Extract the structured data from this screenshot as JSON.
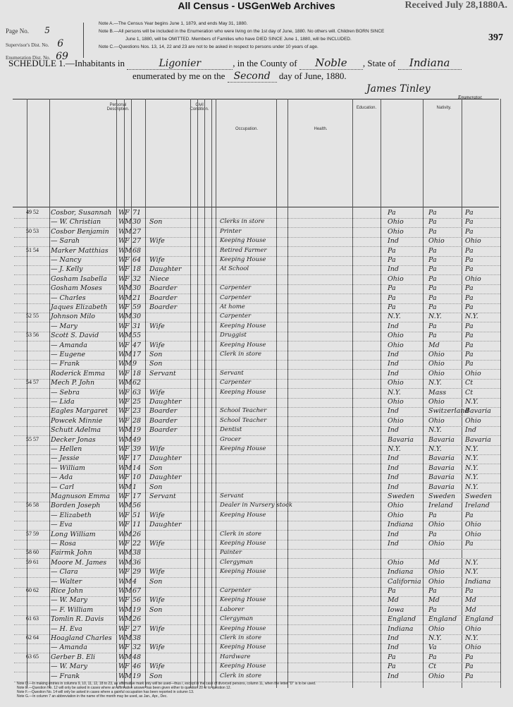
{
  "banner": "All Census - USGenWeb Archives",
  "received": "Received July 28,1880",
  "page_corner_letter": "A.",
  "page_number_stamp": "397",
  "meta": {
    "page_label": "Page No.",
    "page_value": "5",
    "supervisor_label": "Supervisor's Dist. No.",
    "supervisor_value": "6",
    "enumeration_label": "Enumeration Dist. No.",
    "enumeration_value": "69"
  },
  "notes": [
    "Note A.—The Census Year begins June 1, 1879, and ends May 31, 1880.",
    "Note B.—All persons will be included in the Enumeration who were living on the 1st day of June, 1880. No others will. Children BORN SINCE",
    "June 1, 1880, will be OMITTED. Members of Families who have DIED SINCE June 1, 1880, will be INCLUDED.",
    "Note C.—Questions Nos. 13, 14, 22 and 23 are not to be asked in respect to persons under 10 years of age."
  ],
  "schedule": {
    "prefix": "SCHEDULE 1.—Inhabitants in",
    "place": "Ligonier",
    "county_label": ", in the County of",
    "county": "Noble",
    "state_label": ", State of",
    "state": "Indiana",
    "enum_prefix": "enumerated by me on the",
    "day": "Second",
    "enum_suffix": "day of June, 1880.",
    "enumerator_signature": "James Tinley",
    "enumerator_label": "Enumerator."
  },
  "column_headers": {
    "personal": "Personal Description.",
    "civil": "Civil Condition.",
    "occupation": "Occupation.",
    "health": "Health.",
    "education": "Education.",
    "nativity": "Nativity."
  },
  "rows": [
    {
      "dw": "49 52",
      "name": "Cosbor, Susannah",
      "c": "W",
      "s": "F",
      "a": "71",
      "rel": "",
      "occ": "",
      "bp": "Pa",
      "fa": "Pa",
      "mo": "Pa"
    },
    {
      "dw": "",
      "name": "— W. Christian",
      "c": "W",
      "s": "M",
      "a": "30",
      "rel": "Son",
      "occ": "Clerks in store",
      "bp": "Ohio",
      "fa": "Pa",
      "mo": "Pa"
    },
    {
      "dw": "50 53",
      "name": "Cosbor Benjamin",
      "c": "W",
      "s": "M",
      "a": "27",
      "rel": "",
      "occ": "Printer",
      "bp": "Ohio",
      "fa": "Pa",
      "mo": "Pa"
    },
    {
      "dw": "",
      "name": "— Sarah",
      "c": "W",
      "s": "F",
      "a": "27",
      "rel": "Wife",
      "occ": "Keeping House",
      "bp": "Ind",
      "fa": "Ohio",
      "mo": "Ohio"
    },
    {
      "dw": "51 54",
      "name": "Marker Matthias",
      "c": "W",
      "s": "M",
      "a": "68",
      "rel": "",
      "occ": "Retired Farmer",
      "bp": "Pa",
      "fa": "Pa",
      "mo": "Pa"
    },
    {
      "dw": "",
      "name": "— Nancy",
      "c": "W",
      "s": "F",
      "a": "64",
      "rel": "Wife",
      "occ": "Keeping House",
      "bp": "Pa",
      "fa": "Pa",
      "mo": "Pa"
    },
    {
      "dw": "",
      "name": "— J. Kelly",
      "c": "W",
      "s": "F",
      "a": "18",
      "rel": "Daughter",
      "occ": "At School",
      "bp": "Ind",
      "fa": "Pa",
      "mo": "Pa"
    },
    {
      "dw": "",
      "name": "Gosham Isabella",
      "c": "W",
      "s": "F",
      "a": "32",
      "rel": "Niece",
      "occ": "",
      "bp": "Ohio",
      "fa": "Pa",
      "mo": "Ohio"
    },
    {
      "dw": "",
      "name": "Gosham Moses",
      "c": "W",
      "s": "M",
      "a": "30",
      "rel": "Boarder",
      "occ": "Carpenter",
      "bp": "Pa",
      "fa": "Pa",
      "mo": "Pa"
    },
    {
      "dw": "",
      "name": "— Charles",
      "c": "W",
      "s": "M",
      "a": "21",
      "rel": "Boarder",
      "occ": "Carpenter",
      "bp": "Pa",
      "fa": "Pa",
      "mo": "Pa"
    },
    {
      "dw": "",
      "name": "Jaques Elizabeth",
      "c": "W",
      "s": "F",
      "a": "59",
      "rel": "Boarder",
      "occ": "At home",
      "bp": "Pa",
      "fa": "Pa",
      "mo": "Pa"
    },
    {
      "dw": "52 55",
      "name": "Johnson Milo",
      "c": "W",
      "s": "M",
      "a": "30",
      "rel": "",
      "occ": "Carpenter",
      "bp": "N.Y.",
      "fa": "N.Y.",
      "mo": "N.Y."
    },
    {
      "dw": "",
      "name": "— Mary",
      "c": "W",
      "s": "F",
      "a": "31",
      "rel": "Wife",
      "occ": "Keeping House",
      "bp": "Ind",
      "fa": "Pa",
      "mo": "Pa"
    },
    {
      "dw": "53 56",
      "name": "Scott S. David",
      "c": "W",
      "s": "M",
      "a": "55",
      "rel": "",
      "occ": "Druggist",
      "bp": "Ohio",
      "fa": "Pa",
      "mo": "Pa"
    },
    {
      "dw": "",
      "name": "— Amanda",
      "c": "W",
      "s": "F",
      "a": "47",
      "rel": "Wife",
      "occ": "Keeping House",
      "bp": "Ohio",
      "fa": "Md",
      "mo": "Pa"
    },
    {
      "dw": "",
      "name": "— Eugene",
      "c": "W",
      "s": "M",
      "a": "17",
      "rel": "Son",
      "occ": "Clerk in store",
      "bp": "Ind",
      "fa": "Ohio",
      "mo": "Pa"
    },
    {
      "dw": "",
      "name": "— Frank",
      "c": "W",
      "s": "M",
      "a": "9",
      "rel": "Son",
      "occ": "",
      "bp": "Ind",
      "fa": "Ohio",
      "mo": "Pa"
    },
    {
      "dw": "",
      "name": "Roderick Emma",
      "c": "W",
      "s": "F",
      "a": "18",
      "rel": "Servant",
      "occ": "Servant",
      "bp": "Ind",
      "fa": "Ohio",
      "mo": "Ohio"
    },
    {
      "dw": "54 57",
      "name": "Mech P. John",
      "c": "W",
      "s": "M",
      "a": "62",
      "rel": "",
      "occ": "Carpenter",
      "bp": "Ohio",
      "fa": "N.Y.",
      "mo": "Ct"
    },
    {
      "dw": "",
      "name": "— Sebra",
      "c": "W",
      "s": "F",
      "a": "63",
      "rel": "Wife",
      "occ": "Keeping House",
      "bp": "N.Y.",
      "fa": "Mass",
      "mo": "Ct"
    },
    {
      "dw": "",
      "name": "— Lida",
      "c": "W",
      "s": "F",
      "a": "25",
      "rel": "Daughter",
      "occ": "",
      "bp": "Ohio",
      "fa": "Ohio",
      "mo": "N.Y."
    },
    {
      "dw": "",
      "name": "Eagles Margaret",
      "c": "W",
      "s": "F",
      "a": "23",
      "rel": "Boarder",
      "occ": "School Teacher",
      "bp": "Ind",
      "fa": "Switzerland",
      "mo": "Bavaria"
    },
    {
      "dw": "",
      "name": "Powcek Minnie",
      "c": "W",
      "s": "F",
      "a": "28",
      "rel": "Boarder",
      "occ": "School Teacher",
      "bp": "Ohio",
      "fa": "Ohio",
      "mo": "Ohio"
    },
    {
      "dw": "",
      "name": "Schutt Adelma",
      "c": "W",
      "s": "M",
      "a": "19",
      "rel": "Boarder",
      "occ": "Dentist",
      "bp": "Ind",
      "fa": "N.Y.",
      "mo": "Ind"
    },
    {
      "dw": "55 57",
      "name": "Decker Jonas",
      "c": "W",
      "s": "M",
      "a": "49",
      "rel": "",
      "occ": "Grocer",
      "bp": "Bavaria",
      "fa": "Bavaria",
      "mo": "Bavaria"
    },
    {
      "dw": "",
      "name": "— Hellen",
      "c": "W",
      "s": "F",
      "a": "39",
      "rel": "Wife",
      "occ": "Keeping House",
      "bp": "N.Y.",
      "fa": "N.Y.",
      "mo": "N.Y."
    },
    {
      "dw": "",
      "name": "— Jessie",
      "c": "W",
      "s": "F",
      "a": "17",
      "rel": "Daughter",
      "occ": "",
      "bp": "Ind",
      "fa": "Bavaria",
      "mo": "N.Y."
    },
    {
      "dw": "",
      "name": "— William",
      "c": "W",
      "s": "M",
      "a": "14",
      "rel": "Son",
      "occ": "",
      "bp": "Ind",
      "fa": "Bavaria",
      "mo": "N.Y."
    },
    {
      "dw": "",
      "name": "— Ada",
      "c": "W",
      "s": "F",
      "a": "10",
      "rel": "Daughter",
      "occ": "",
      "bp": "Ind",
      "fa": "Bavaria",
      "mo": "N.Y."
    },
    {
      "dw": "",
      "name": "— Carl",
      "c": "W",
      "s": "M",
      "a": "1",
      "rel": "Son",
      "occ": "",
      "bp": "Ind",
      "fa": "Bavaria",
      "mo": "N.Y."
    },
    {
      "dw": "",
      "name": "Magnuson Emma",
      "c": "W",
      "s": "F",
      "a": "17",
      "rel": "Servant",
      "occ": "Servant",
      "bp": "Sweden",
      "fa": "Sweden",
      "mo": "Sweden"
    },
    {
      "dw": "56 58",
      "name": "Borden Joseph",
      "c": "W",
      "s": "M",
      "a": "56",
      "rel": "",
      "occ": "Dealer in Nursery stock",
      "bp": "Ohio",
      "fa": "Ireland",
      "mo": "Ireland"
    },
    {
      "dw": "",
      "name": "— Elizabeth",
      "c": "W",
      "s": "F",
      "a": "51",
      "rel": "Wife",
      "occ": "Keeping House",
      "bp": "Ohio",
      "fa": "Pa",
      "mo": "Pa"
    },
    {
      "dw": "",
      "name": "— Eva",
      "c": "W",
      "s": "F",
      "a": "11",
      "rel": "Daughter",
      "occ": "",
      "bp": "Indiana",
      "fa": "Ohio",
      "mo": "Ohio"
    },
    {
      "dw": "57 59",
      "name": "Long William",
      "c": "W",
      "s": "M",
      "a": "26",
      "rel": "",
      "occ": "Clerk in store",
      "bp": "Ind",
      "fa": "Pa",
      "mo": "Ohio"
    },
    {
      "dw": "",
      "name": "— Rosa",
      "c": "W",
      "s": "F",
      "a": "22",
      "rel": "Wife",
      "occ": "Keeping House",
      "bp": "Ind",
      "fa": "Ohio",
      "mo": "Pa"
    },
    {
      "dw": "58 60",
      "name": "Fairmk John",
      "c": "W",
      "s": "M",
      "a": "38",
      "rel": "",
      "occ": "Painter",
      "bp": "",
      "fa": "",
      "mo": ""
    },
    {
      "dw": "59 61",
      "name": "Moore M. James",
      "c": "W",
      "s": "M",
      "a": "36",
      "rel": "",
      "occ": "Clergyman",
      "bp": "Ohio",
      "fa": "Md",
      "mo": "N.Y."
    },
    {
      "dw": "",
      "name": "— Clara",
      "c": "W",
      "s": "F",
      "a": "29",
      "rel": "Wife",
      "occ": "Keeping House",
      "bp": "Indiana",
      "fa": "Ohio",
      "mo": "N.Y."
    },
    {
      "dw": "",
      "name": "— Walter",
      "c": "W",
      "s": "M",
      "a": "4",
      "rel": "Son",
      "occ": "",
      "bp": "California",
      "fa": "Ohio",
      "mo": "Indiana"
    },
    {
      "dw": "60 62",
      "name": "Rice John",
      "c": "W",
      "s": "M",
      "a": "67",
      "rel": "",
      "occ": "Carpenter",
      "bp": "Pa",
      "fa": "Pa",
      "mo": "Pa"
    },
    {
      "dw": "",
      "name": "— W. Mary",
      "c": "W",
      "s": "F",
      "a": "56",
      "rel": "Wife",
      "occ": "Keeping House",
      "bp": "Md",
      "fa": "Md",
      "mo": "Md"
    },
    {
      "dw": "",
      "name": "— F. William",
      "c": "W",
      "s": "M",
      "a": "19",
      "rel": "Son",
      "occ": "Laborer",
      "bp": "Iowa",
      "fa": "Pa",
      "mo": "Md"
    },
    {
      "dw": "61 63",
      "name": "Tomlin R. Davis",
      "c": "W",
      "s": "M",
      "a": "26",
      "rel": "",
      "occ": "Clergyman",
      "bp": "England",
      "fa": "England",
      "mo": "England"
    },
    {
      "dw": "",
      "name": "— H. Eva",
      "c": "W",
      "s": "F",
      "a": "27",
      "rel": "Wife",
      "occ": "Keeping House",
      "bp": "Indiana",
      "fa": "Ohio",
      "mo": "Ohio"
    },
    {
      "dw": "62 64",
      "name": "Hoagland Charles",
      "c": "W",
      "s": "M",
      "a": "38",
      "rel": "",
      "occ": "Clerk in store",
      "bp": "Ind",
      "fa": "N.Y.",
      "mo": "N.Y."
    },
    {
      "dw": "",
      "name": "— Amanda",
      "c": "W",
      "s": "F",
      "a": "32",
      "rel": "Wife",
      "occ": "Keeping House",
      "bp": "Ind",
      "fa": "Va",
      "mo": "Ohio"
    },
    {
      "dw": "63 65",
      "name": "Gerber B. Eli",
      "c": "W",
      "s": "M",
      "a": "48",
      "rel": "",
      "occ": "Hardware",
      "bp": "Pa",
      "fa": "Pa",
      "mo": "Pa"
    },
    {
      "dw": "",
      "name": "— W. Mary",
      "c": "W",
      "s": "F",
      "a": "46",
      "rel": "Wife",
      "occ": "Keeping House",
      "bp": "Pa",
      "fa": "Ct",
      "mo": "Pa"
    },
    {
      "dw": "",
      "name": "— Frank",
      "c": "W",
      "s": "M",
      "a": "19",
      "rel": "Son",
      "occ": "Clerk in store",
      "bp": "Ind",
      "fa": "Ohio",
      "mo": "Pa"
    }
  ],
  "footnotes": [
    "Note D.—In making entries in columns 9, 10, 11, 12, 18 to 23, an affirmative mark only will be used—thus /, except in the case of divorced persons, column 11, when the letter \"D\" is to be used.",
    "Note E.—Question No. 12 will only be asked in cases where an affirmative answer has been given either to question 20 or to question 12.",
    "Note F.—Question No. 14 will only be asked in cases where a gainful occupation has been reported in column 13.",
    "Note G.—In column 7 an abbreviation in the name of the month may be used, as Jan., Apr., Dec."
  ]
}
